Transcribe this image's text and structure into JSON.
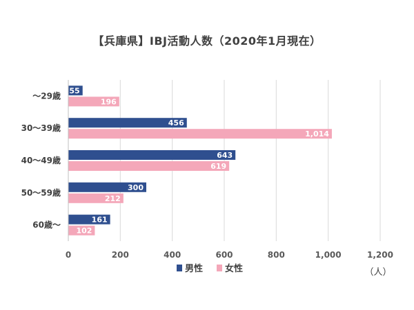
{
  "chart_data": {
    "type": "bar",
    "orientation": "horizontal",
    "title": "【兵庫県】IBJ活動人数（2020年1月現在）",
    "categories": [
      "～29歳",
      "30～39歳",
      "40～49歳",
      "50～59歳",
      "60歳～"
    ],
    "series": [
      {
        "name": "男性",
        "values": [
          55,
          456,
          643,
          300,
          161
        ],
        "value_labels": [
          "55",
          "456",
          "643",
          "300",
          "161"
        ],
        "color": "#2f4f8f"
      },
      {
        "name": "女性",
        "values": [
          196,
          1014,
          619,
          212,
          102
        ],
        "value_labels": [
          "196",
          "1,014",
          "619",
          "212",
          "102"
        ],
        "color": "#f4a7b9"
      }
    ],
    "x_ticks": [
      0,
      200,
      400,
      600,
      800,
      1000,
      1200
    ],
    "x_tick_labels": [
      "0",
      "200",
      "400",
      "600",
      "800",
      "1,000",
      "1,200"
    ],
    "xlim": [
      0,
      1200
    ],
    "unit": "（人）",
    "grid": true,
    "legend_position": "bottom"
  }
}
